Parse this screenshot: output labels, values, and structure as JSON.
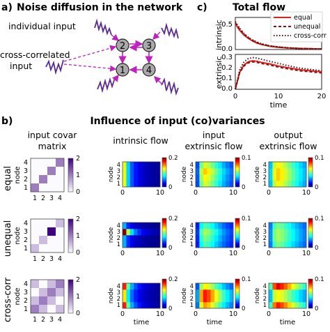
{
  "panel_a": {
    "letter": "a)",
    "title": "Noise diffusion in the network",
    "label_individual": "individual input",
    "label_cross_1": "cross-correlated",
    "label_cross_2": "input",
    "nodes": [
      "1",
      "2",
      "3",
      "4"
    ],
    "colors": {
      "arrow": "#c020c0",
      "noise": "#5b2a8c",
      "node_fill": "#a9a9a9"
    }
  },
  "panel_b": {
    "letter": "b)",
    "title": "Influence of input (co)variances",
    "col_headers": [
      [
        "input covar",
        "matrix"
      ],
      [
        "intrinsic flow"
      ],
      [
        "input",
        "extrinsic flow"
      ],
      [
        "output",
        "extrinsic flow"
      ]
    ],
    "row_labels": [
      "equal",
      "unequal",
      "cross-corr"
    ],
    "ylabel_node": "node",
    "xlabel_time": "time",
    "matrix_ticks": [
      "1",
      "2",
      "3",
      "4"
    ],
    "node_ticks": [
      "1",
      "2",
      "3",
      "4"
    ],
    "time_ticks": [
      "0",
      "10"
    ],
    "cbar_matrix_ticks": [
      "0",
      "1",
      "2"
    ],
    "cbar_intrinsic_ticks": [
      "0",
      "0.2"
    ],
    "cbar_extrinsic_ticks": [
      "0",
      "0.1"
    ]
  },
  "panel_c": {
    "letter": "c)",
    "title": "Total flow",
    "xlabel": "time",
    "top_ylabel": "intrinsic",
    "bottom_ylabel": "extrinsic",
    "top_yticks": [
      "0.0",
      "0.5"
    ],
    "bottom_yticks": [
      "0.0",
      "0.1",
      "0.2",
      "0.3"
    ],
    "xticks": [
      "0",
      "10",
      "20"
    ],
    "legend": [
      "equal",
      "unequal",
      "cross-corr"
    ]
  },
  "chart_data": [
    {
      "type": "line",
      "title": "Total flow",
      "ylabel": "intrinsic",
      "xlabel": "",
      "xlim": [
        0,
        20
      ],
      "ylim": [
        0,
        0.6
      ],
      "x": [
        0,
        1,
        2,
        3,
        4,
        5,
        6,
        8,
        10,
        12,
        15,
        20
      ],
      "series": [
        {
          "name": "equal",
          "color": "#e32020",
          "style": "solid",
          "values": [
            0.48,
            0.36,
            0.27,
            0.21,
            0.16,
            0.12,
            0.095,
            0.06,
            0.04,
            0.03,
            0.02,
            0.01
          ]
        },
        {
          "name": "unequal",
          "color": "#8b1010",
          "style": "dashed",
          "values": [
            0.5,
            0.38,
            0.29,
            0.22,
            0.17,
            0.13,
            0.1,
            0.065,
            0.045,
            0.03,
            0.02,
            0.01
          ]
        },
        {
          "name": "cross-corr",
          "color": "#5a0a0a",
          "style": "dotted",
          "values": [
            0.52,
            0.4,
            0.3,
            0.23,
            0.18,
            0.14,
            0.11,
            0.07,
            0.05,
            0.035,
            0.02,
            0.01
          ]
        }
      ]
    },
    {
      "type": "line",
      "ylabel": "extrinsic",
      "xlabel": "time",
      "xlim": [
        0,
        20
      ],
      "ylim": [
        0,
        0.33
      ],
      "x": [
        0,
        1,
        2,
        3,
        4,
        5,
        6,
        8,
        10,
        12,
        15,
        20
      ],
      "series": [
        {
          "name": "equal",
          "color": "#e32020",
          "style": "solid",
          "values": [
            0.0,
            0.16,
            0.23,
            0.26,
            0.27,
            0.265,
            0.255,
            0.24,
            0.22,
            0.205,
            0.185,
            0.165
          ]
        },
        {
          "name": "unequal",
          "color": "#8b1010",
          "style": "dashed",
          "values": [
            0.0,
            0.155,
            0.22,
            0.25,
            0.26,
            0.255,
            0.245,
            0.23,
            0.21,
            0.195,
            0.175,
            0.155
          ]
        },
        {
          "name": "cross-corr",
          "color": "#5a0a0a",
          "style": "dotted",
          "values": [
            0.0,
            0.18,
            0.26,
            0.29,
            0.3,
            0.295,
            0.285,
            0.265,
            0.245,
            0.225,
            0.2,
            0.175
          ]
        }
      ]
    },
    {
      "type": "heatmap",
      "title": "input covar matrix",
      "rows": [
        "equal",
        "unequal",
        "cross-corr"
      ],
      "vmin": 0,
      "vmax": 2,
      "matrices": [
        [
          [
            1,
            0,
            0,
            0
          ],
          [
            0,
            1,
            0,
            0
          ],
          [
            0,
            0,
            1,
            0
          ],
          [
            0,
            0,
            0,
            1
          ]
        ],
        [
          [
            0.5,
            0,
            0,
            0
          ],
          [
            0,
            0.5,
            0,
            0
          ],
          [
            0,
            0,
            2.5,
            0
          ],
          [
            0,
            0,
            0,
            0.5
          ]
        ],
        [
          [
            1,
            0.5,
            0,
            0.5
          ],
          [
            0.5,
            1,
            0.5,
            0
          ],
          [
            0,
            0.5,
            1,
            0.5
          ],
          [
            0.5,
            0,
            0.5,
            1
          ]
        ]
      ]
    },
    {
      "type": "heatmap",
      "title": "intrinsic flow",
      "xlim": [
        0,
        10
      ],
      "vmin": 0,
      "vmax": 0.2,
      "time_steps": [
        0,
        1,
        2,
        3,
        4,
        5,
        6,
        7,
        8,
        9
      ],
      "decay": [
        1.0,
        0.55,
        0.35,
        0.24,
        0.17,
        0.12,
        0.09,
        0.07,
        0.05,
        0.04
      ],
      "node_scale": [
        [
          0.12,
          0.12,
          0.12,
          0.12
        ],
        [
          0.06,
          0.06,
          0.2,
          0.06
        ],
        [
          0.17,
          0.13,
          0.13,
          0.17
        ]
      ]
    },
    {
      "type": "heatmap",
      "title": "input extrinsic flow",
      "xlim": [
        0,
        10
      ],
      "vmin": 0,
      "vmax": 0.1,
      "time_steps": [
        0,
        1,
        2,
        3,
        4,
        5,
        6,
        7,
        8,
        9
      ],
      "profile": [
        0.3,
        0.75,
        0.9,
        0.85,
        0.75,
        0.65,
        0.55,
        0.45,
        0.38,
        0.32
      ],
      "node_scale": [
        [
          0.065,
          0.07,
          0.075,
          0.065
        ],
        [
          0.05,
          0.055,
          0.06,
          0.05
        ],
        [
          0.08,
          0.095,
          0.095,
          0.07
        ]
      ]
    },
    {
      "type": "heatmap",
      "title": "output extrinsic flow",
      "xlim": [
        0,
        10
      ],
      "vmin": 0,
      "vmax": 0.1,
      "time_steps": [
        0,
        1,
        2,
        3,
        4,
        5,
        6,
        7,
        8,
        9
      ],
      "profile": [
        0.45,
        0.8,
        0.9,
        0.85,
        0.78,
        0.7,
        0.62,
        0.55,
        0.48,
        0.42
      ],
      "node_scale": [
        [
          0.07,
          0.075,
          0.075,
          0.07
        ],
        [
          0.055,
          0.06,
          0.06,
          0.055
        ],
        [
          0.095,
          0.07,
          0.07,
          0.1
        ]
      ]
    }
  ]
}
